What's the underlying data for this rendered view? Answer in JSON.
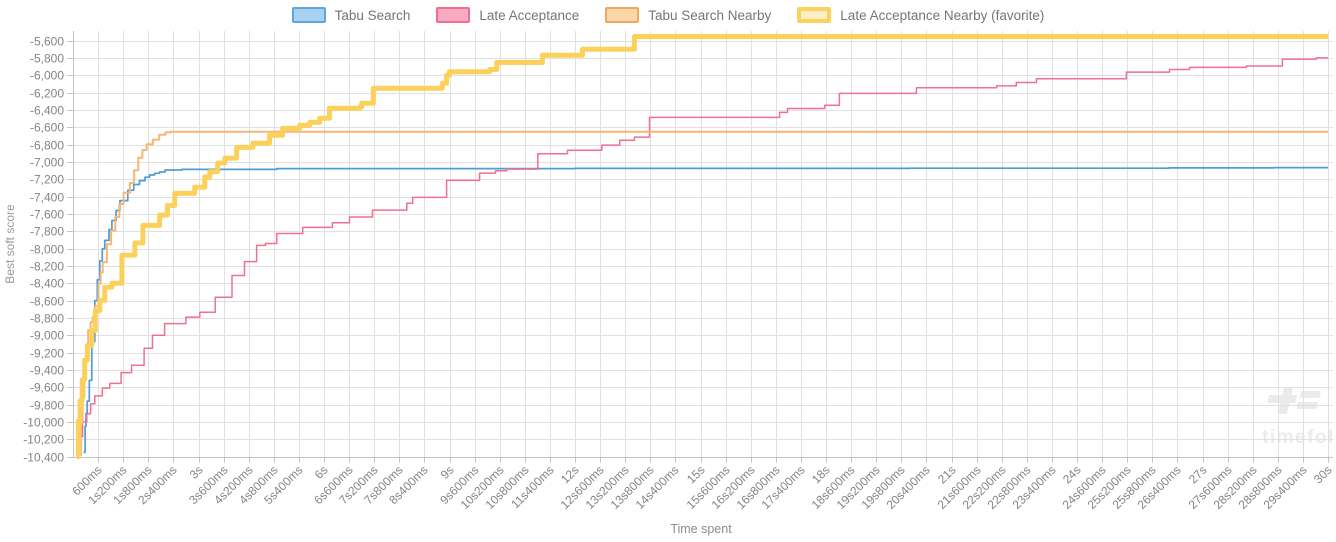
{
  "legend": {
    "items": [
      {
        "label": "Tabu Search",
        "fill": "#a9d2f2",
        "border": "#5ba7de"
      },
      {
        "label": "Late Acceptance",
        "fill": "#f9aac3",
        "border": "#f06e91"
      },
      {
        "label": "Tabu Search Nearby",
        "fill": "#fbd6a6",
        "border": "#f3a660"
      },
      {
        "label": "Late Acceptance Nearby (favorite)",
        "fill": "#fdeec5",
        "border": "#fbd25e"
      }
    ]
  },
  "watermark": {
    "text": "timefold",
    "color": "#ebebeb"
  },
  "chart_data": {
    "type": "line",
    "step": true,
    "xlabel": "Time spent",
    "ylabel": "Best soft score",
    "xlim_ms": [
      0,
      30000
    ],
    "ylim": [
      -10400,
      -5600
    ],
    "y_tick_step": 200,
    "x_tick_step_ms": 600,
    "grid": true,
    "legend_position": "top-center",
    "x_tick_labels": [
      "600ms",
      "1s200ms",
      "1s800ms",
      "2s400ms",
      "3s",
      "3s600ms",
      "4s200ms",
      "4s800ms",
      "5s400ms",
      "6s",
      "6s600ms",
      "7s200ms",
      "7s800ms",
      "8s400ms",
      "9s",
      "9s600ms",
      "10s200ms",
      "10s800ms",
      "11s400ms",
      "12s",
      "12s600ms",
      "13s200ms",
      "13s800ms",
      "14s400ms",
      "15s",
      "15s600ms",
      "16s200ms",
      "16s800ms",
      "17s400ms",
      "18s",
      "18s600ms",
      "19s200ms",
      "19s800ms",
      "20s400ms",
      "21s",
      "21s600ms",
      "22s200ms",
      "22s800ms",
      "23s400ms",
      "24s",
      "24s600ms",
      "25s200ms",
      "25s800ms",
      "26s400ms",
      "27s",
      "27s600ms",
      "28s200ms",
      "28s800ms",
      "29s400ms",
      "30s"
    ],
    "y_tick_labels": [
      "-5,600",
      "-5,800",
      "-6,000",
      "-6,200",
      "-6,400",
      "-6,600",
      "-6,800",
      "-7,000",
      "-7,200",
      "-7,400",
      "-7,600",
      "-7,800",
      "-8,000",
      "-8,200",
      "-8,400",
      "-8,600",
      "-8,800",
      "-9,000",
      "-9,200",
      "-9,400",
      "-9,600",
      "-9,800",
      "-10,000",
      "-10,200",
      "-10,400"
    ],
    "series": [
      {
        "name": "Tabu Search",
        "color": "#4d9dd8",
        "width": 1.7,
        "points": [
          [
            250,
            -10350
          ],
          [
            290,
            -10050
          ],
          [
            310,
            -9900
          ],
          [
            340,
            -9760
          ],
          [
            390,
            -9520
          ],
          [
            450,
            -9070
          ],
          [
            520,
            -8600
          ],
          [
            580,
            -8360
          ],
          [
            640,
            -8140
          ],
          [
            700,
            -8000
          ],
          [
            760,
            -7905
          ],
          [
            860,
            -7780
          ],
          [
            930,
            -7675
          ],
          [
            1030,
            -7560
          ],
          [
            1120,
            -7445
          ],
          [
            1310,
            -7325
          ],
          [
            1450,
            -7260
          ],
          [
            1590,
            -7215
          ],
          [
            1720,
            -7175
          ],
          [
            1830,
            -7150
          ],
          [
            1950,
            -7130
          ],
          [
            2070,
            -7115
          ],
          [
            2200,
            -7092
          ],
          [
            2600,
            -7085
          ],
          [
            4870,
            -7076
          ],
          [
            12000,
            -7074
          ],
          [
            20000,
            -7072
          ],
          [
            26200,
            -7068
          ],
          [
            28700,
            -7065
          ],
          [
            30000,
            -7065
          ]
        ]
      },
      {
        "name": "Late Acceptance",
        "color": "#f0708f",
        "width": 1.5,
        "points": [
          [
            100,
            -10400
          ],
          [
            160,
            -10170
          ],
          [
            230,
            -10000
          ],
          [
            330,
            -9905
          ],
          [
            420,
            -9790
          ],
          [
            520,
            -9700
          ],
          [
            700,
            -9610
          ],
          [
            880,
            -9555
          ],
          [
            1150,
            -9430
          ],
          [
            1400,
            -9345
          ],
          [
            1700,
            -9150
          ],
          [
            1900,
            -9000
          ],
          [
            2190,
            -8865
          ],
          [
            2700,
            -8790
          ],
          [
            3030,
            -8735
          ],
          [
            3400,
            -8560
          ],
          [
            3800,
            -8310
          ],
          [
            4100,
            -8150
          ],
          [
            4390,
            -7962
          ],
          [
            4600,
            -7940
          ],
          [
            4870,
            -7825
          ],
          [
            5490,
            -7755
          ],
          [
            6200,
            -7700
          ],
          [
            6610,
            -7635
          ],
          [
            7160,
            -7555
          ],
          [
            7980,
            -7475
          ],
          [
            8120,
            -7408
          ],
          [
            8930,
            -7212
          ],
          [
            9720,
            -7128
          ],
          [
            10100,
            -7100
          ],
          [
            10370,
            -7082
          ],
          [
            11110,
            -6905
          ],
          [
            11820,
            -6865
          ],
          [
            12640,
            -6805
          ],
          [
            13070,
            -6748
          ],
          [
            13420,
            -6712
          ],
          [
            13780,
            -6485
          ],
          [
            16890,
            -6428
          ],
          [
            17080,
            -6382
          ],
          [
            17970,
            -6345
          ],
          [
            18320,
            -6208
          ],
          [
            20160,
            -6142
          ],
          [
            22080,
            -6122
          ],
          [
            22550,
            -6082
          ],
          [
            23030,
            -6038
          ],
          [
            25180,
            -5962
          ],
          [
            26210,
            -5932
          ],
          [
            26690,
            -5908
          ],
          [
            28050,
            -5892
          ],
          [
            28910,
            -5812
          ],
          [
            29720,
            -5798
          ],
          [
            30000,
            -5798
          ]
        ]
      },
      {
        "name": "Tabu Search Nearby",
        "color": "#f8b672",
        "width": 2,
        "points": [
          [
            150,
            -10380
          ],
          [
            190,
            -10020
          ],
          [
            230,
            -9720
          ],
          [
            270,
            -9420
          ],
          [
            310,
            -9150
          ],
          [
            360,
            -8940
          ],
          [
            420,
            -8850
          ],
          [
            470,
            -8790
          ],
          [
            520,
            -8665
          ],
          [
            610,
            -8405
          ],
          [
            660,
            -8275
          ],
          [
            710,
            -8155
          ],
          [
            810,
            -7950
          ],
          [
            910,
            -7790
          ],
          [
            1010,
            -7635
          ],
          [
            1110,
            -7485
          ],
          [
            1210,
            -7355
          ],
          [
            1360,
            -7242
          ],
          [
            1460,
            -7095
          ],
          [
            1560,
            -6952
          ],
          [
            1660,
            -6862
          ],
          [
            1760,
            -6795
          ],
          [
            1910,
            -6742
          ],
          [
            2060,
            -6685
          ],
          [
            2210,
            -6658
          ],
          [
            2320,
            -6650
          ],
          [
            30000,
            -6650
          ]
        ]
      },
      {
        "name": "Late Acceptance Nearby (favorite)",
        "color": "#fbd15b",
        "width": 5,
        "points": [
          [
            100,
            -10400
          ],
          [
            130,
            -9985
          ],
          [
            170,
            -9755
          ],
          [
            220,
            -9515
          ],
          [
            280,
            -9285
          ],
          [
            350,
            -9115
          ],
          [
            450,
            -8945
          ],
          [
            530,
            -8715
          ],
          [
            640,
            -8595
          ],
          [
            760,
            -8445
          ],
          [
            930,
            -8400
          ],
          [
            1170,
            -8075
          ],
          [
            1480,
            -7935
          ],
          [
            1670,
            -7732
          ],
          [
            2070,
            -7612
          ],
          [
            2260,
            -7502
          ],
          [
            2430,
            -7362
          ],
          [
            2910,
            -7292
          ],
          [
            3150,
            -7172
          ],
          [
            3270,
            -7112
          ],
          [
            3460,
            -7012
          ],
          [
            3630,
            -6955
          ],
          [
            3910,
            -6832
          ],
          [
            4300,
            -6782
          ],
          [
            4700,
            -6692
          ],
          [
            5010,
            -6612
          ],
          [
            5420,
            -6578
          ],
          [
            5660,
            -6542
          ],
          [
            5900,
            -6495
          ],
          [
            6130,
            -6380
          ],
          [
            6850,
            -6368
          ],
          [
            6900,
            -6322
          ],
          [
            7180,
            -6148
          ],
          [
            8830,
            -6092
          ],
          [
            8930,
            -5998
          ],
          [
            9000,
            -5958
          ],
          [
            9960,
            -5932
          ],
          [
            10130,
            -5852
          ],
          [
            11220,
            -5768
          ],
          [
            12180,
            -5698
          ],
          [
            13420,
            -5552
          ],
          [
            30000,
            -5552
          ]
        ]
      }
    ]
  }
}
